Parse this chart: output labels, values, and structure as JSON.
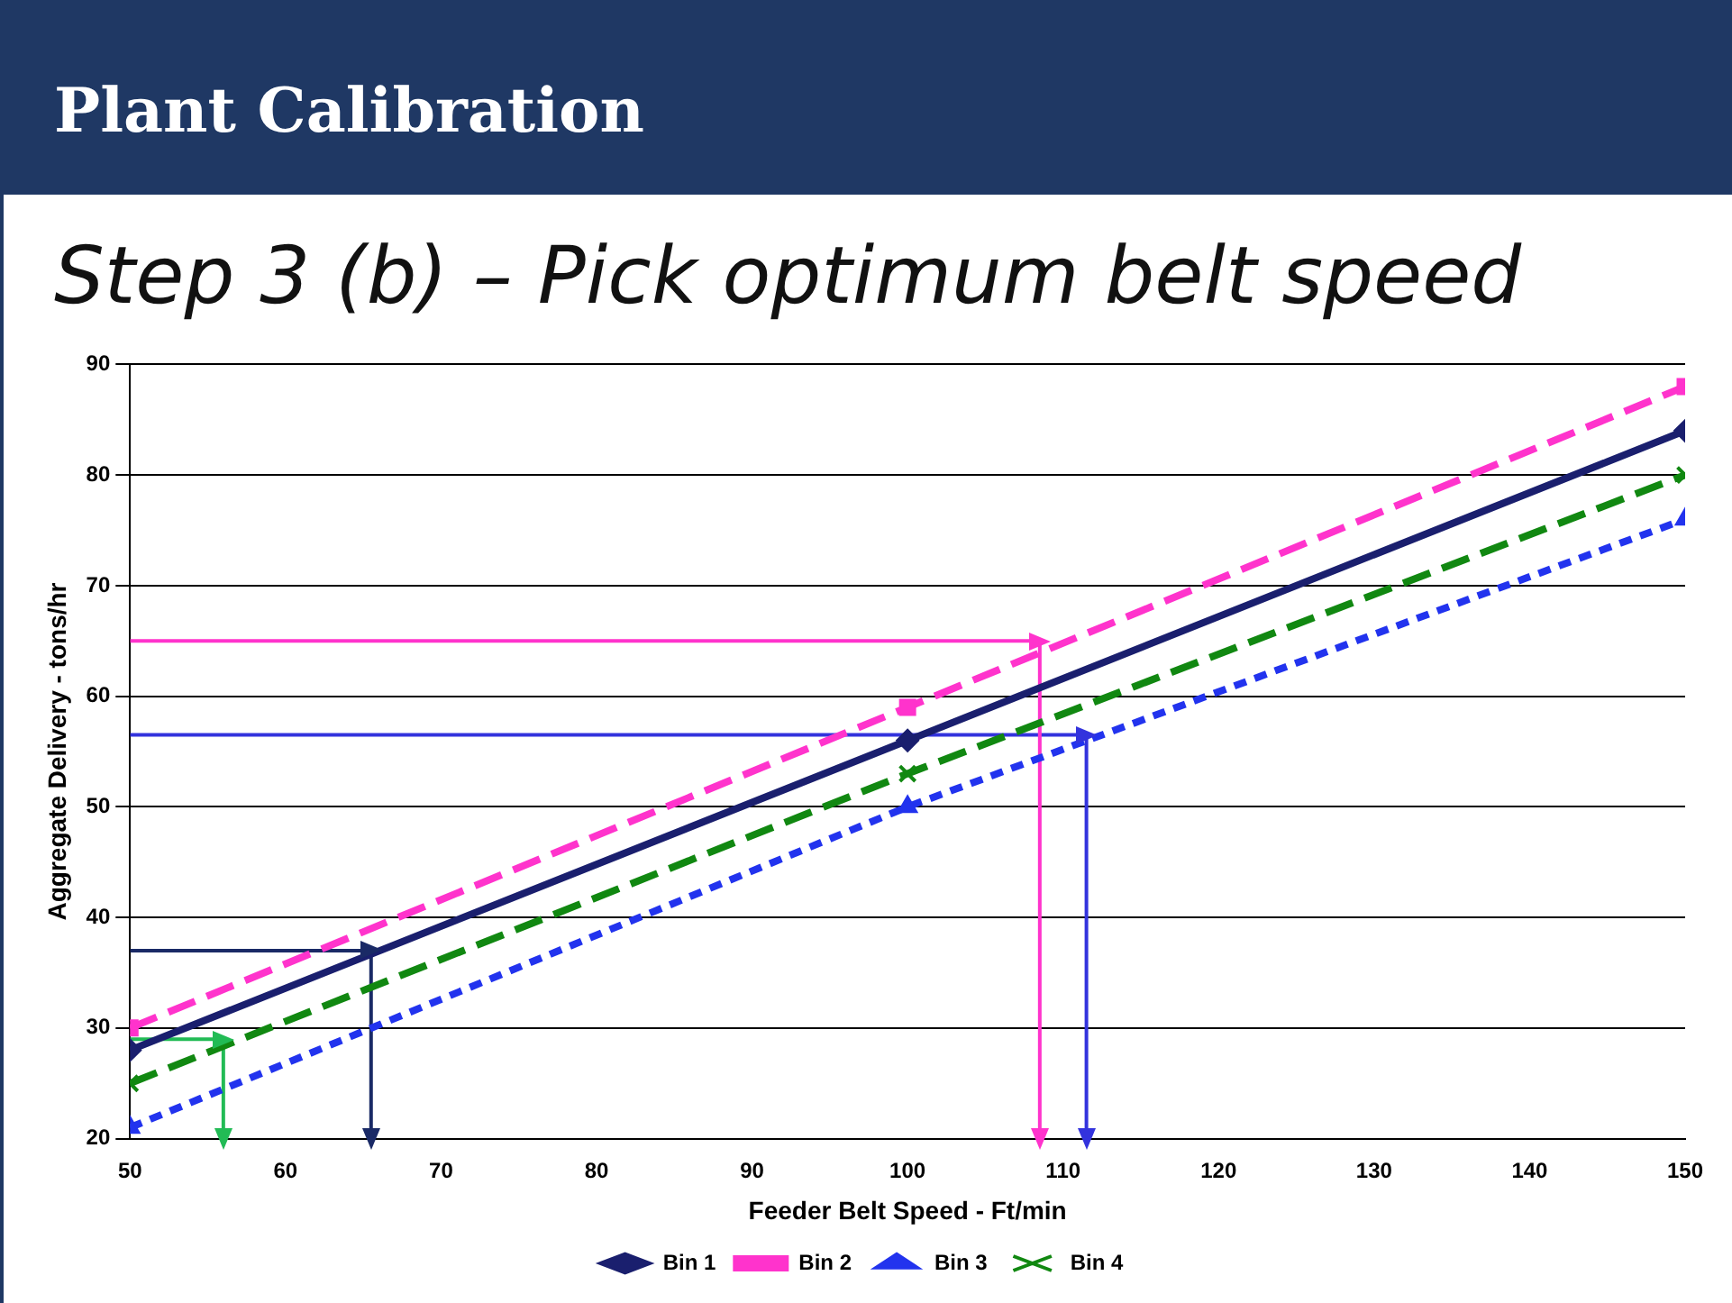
{
  "chart_data": {
    "type": "line",
    "title": "Plant Calibration",
    "subtitle": "Step 3 (b) – Pick optimum belt speed",
    "xlabel": "Feeder Belt Speed - Ft/min",
    "ylabel": "Aggregate Delivery - tons/hr",
    "x": [
      50,
      100,
      150
    ],
    "xlim": [
      50,
      150
    ],
    "xticks": [
      50,
      60,
      70,
      80,
      90,
      100,
      110,
      120,
      130,
      140,
      150
    ],
    "ylim": [
      20,
      90
    ],
    "yticks": [
      20,
      30,
      40,
      50,
      60,
      70,
      80,
      90
    ],
    "grid": "y",
    "legend": "bottom",
    "series": [
      {
        "name": "Bin 1",
        "color": "#1a1f6e",
        "values": [
          28,
          56,
          84
        ],
        "marker": "diamond",
        "line_style": "solid"
      },
      {
        "name": "Bin 2",
        "color": "#ff33cc",
        "values": [
          30,
          59,
          88
        ],
        "marker": "square",
        "line_style": "dashed"
      },
      {
        "name": "Bin 3",
        "color": "#2233ee",
        "values": [
          21,
          50,
          76
        ],
        "marker": "triangle",
        "line_style": "dotted"
      },
      {
        "name": "Bin 4",
        "color": "#118811",
        "values": [
          25,
          53,
          80
        ],
        "marker": "cross",
        "line_style": "dashed"
      },
      {
        "color": "#1a2a66",
        "x": [
          50,
          65.5,
          65.5
        ],
        "values": [
          37,
          37,
          20
        ],
        "line_style": "solid"
      },
      {
        "color": "#ff33cc",
        "x": [
          50,
          108.5,
          108.5
        ],
        "values": [
          65,
          65,
          20
        ],
        "line_style": "solid"
      },
      {
        "color": "#3333dd",
        "x": [
          50,
          111.5,
          111.5
        ],
        "values": [
          56.5,
          56.5,
          20
        ],
        "line_style": "solid"
      },
      {
        "color": "#22bb55",
        "x": [
          50,
          56,
          56
        ],
        "values": [
          29,
          29,
          20
        ],
        "line_style": "solid"
      }
    ]
  }
}
